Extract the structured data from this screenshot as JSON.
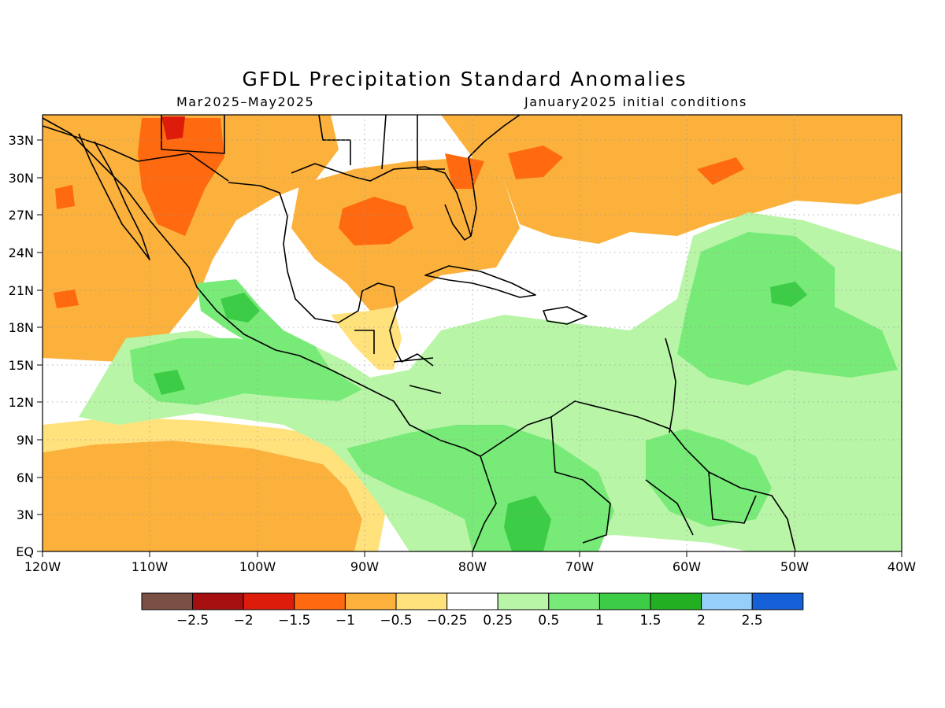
{
  "title": "GFDL Precipitation Standard Anomalies",
  "subtitle_left": "Mar2025–May2025",
  "subtitle_right": "January2025 initial conditions",
  "axes": {
    "x_ticks": [
      "120W",
      "110W",
      "100W",
      "90W",
      "80W",
      "70W",
      "60W",
      "50W",
      "40W"
    ],
    "y_ticks": [
      "EQ",
      "3N",
      "6N",
      "9N",
      "12N",
      "15N",
      "18N",
      "21N",
      "24N",
      "27N",
      "30N",
      "33N"
    ],
    "lon_range": [
      -120,
      -40
    ],
    "lat_range": [
      0,
      35
    ]
  },
  "colorbar": {
    "colors": [
      "#7a5045",
      "#a50f0f",
      "#dd1c0c",
      "#ff6a10",
      "#fbb13c",
      "#ffe27c",
      "#ffffff",
      "#b8f5a6",
      "#78ea78",
      "#3dcc45",
      "#22b022",
      "#96d0fa",
      "#1560d6"
    ],
    "labels": [
      "−2.5",
      "−2",
      "−1.5",
      "−1",
      "−0.5",
      "−0.25",
      "0.25",
      "0.5",
      "1",
      "1.5",
      "2",
      "2.5"
    ]
  },
  "colors": {
    "dry_light": "#ffe27c",
    "dry_med": "#fbb13c",
    "dry_strong": "#ff6a10",
    "dry_severe": "#dd1c0c",
    "wet_light": "#b8f5a6",
    "wet_med": "#78ea78",
    "wet_strong": "#3dcc45"
  }
}
